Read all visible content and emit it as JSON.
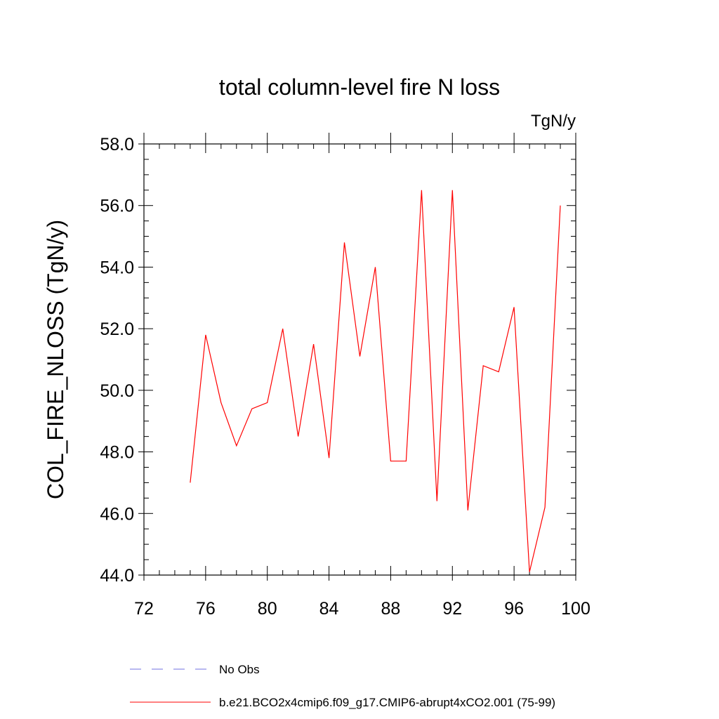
{
  "chart_data": {
    "type": "line",
    "title": "total column-level fire N loss",
    "units_label": "TgN/y",
    "ylabel": "COL_FIRE_NLOSS  (TgN/y)",
    "xlabel": "",
    "xlim": [
      72,
      100
    ],
    "ylim": [
      44.0,
      58.0
    ],
    "x_ticks": [
      72,
      76,
      80,
      84,
      88,
      92,
      96,
      100
    ],
    "x_tick_labels": [
      "72",
      "76",
      "80",
      "84",
      "88",
      "92",
      "96",
      "100"
    ],
    "y_ticks": [
      44,
      46,
      48,
      50,
      52,
      54,
      56,
      58
    ],
    "y_tick_labels": [
      "44.0",
      "46.0",
      "48.0",
      "50.0",
      "52.0",
      "54.0",
      "56.0",
      "58.0"
    ],
    "grid": false,
    "legend_position": "bottom",
    "series": [
      {
        "name": "b.e21.BCO2x4cmip6.f09_g17.CMIP6-abrupt4xCO2.001 (75-99)",
        "color": "#ff0000",
        "style": "solid",
        "x": [
          75,
          76,
          77,
          78,
          79,
          80,
          81,
          82,
          83,
          84,
          85,
          86,
          87,
          88,
          89,
          90,
          91,
          92,
          93,
          94,
          95,
          96,
          97,
          98,
          99
        ],
        "values": [
          47.0,
          51.8,
          49.6,
          48.2,
          49.4,
          49.6,
          52.0,
          48.5,
          51.5,
          47.8,
          54.8,
          51.1,
          54.0,
          47.7,
          47.7,
          56.5,
          46.4,
          56.5,
          46.1,
          50.8,
          50.6,
          52.7,
          44.1,
          46.2,
          56.0
        ]
      }
    ],
    "legend": [
      {
        "label": "No Obs",
        "color": "#7070e0",
        "style": "dashed"
      },
      {
        "label": "b.e21.BCO2x4cmip6.f09_g17.CMIP6-abrupt4xCO2.001 (75-99)",
        "color": "#ff0000",
        "style": "solid"
      }
    ]
  }
}
